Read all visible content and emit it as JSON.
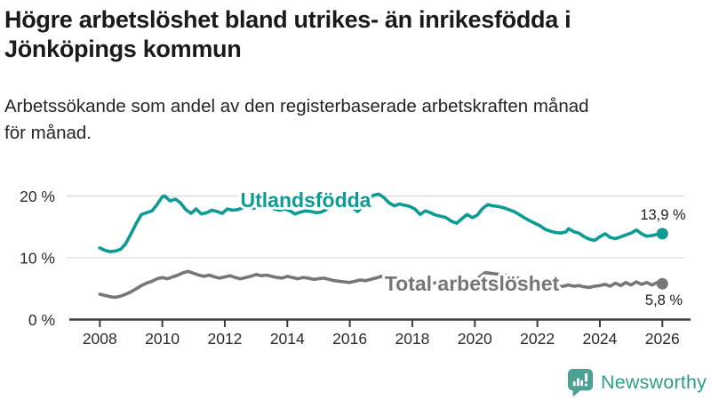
{
  "header": {
    "title_line1": "Högre arbetslöshet bland utrikes- än inrikesfödda i",
    "title_line2": "Jönköpings kommun",
    "subtitle_line1": "Arbetssökande som andel av den registerbaserade arbetskraften månad",
    "subtitle_line2": "för månad."
  },
  "footer": {
    "brand": "Newsworthy",
    "brand_text_color": "#2f9c8e",
    "brand_icon_color": "#4ba294"
  },
  "chart_data": {
    "type": "line",
    "title": "Högre arbetslöshet bland utrikes- än inrikesfödda i Jönköpings kommun",
    "subtitle": "Arbetssökande som andel av den registerbaserade arbetskraften månad för månad.",
    "xlabel": "",
    "ylabel": "",
    "grid": true,
    "legend_position": "inline-labels",
    "xlim": [
      2008,
      2026.6
    ],
    "ylim": [
      0,
      21
    ],
    "x_ticks": [
      2008,
      2010,
      2012,
      2014,
      2016,
      2018,
      2020,
      2022,
      2024,
      2026
    ],
    "x_tick_labels": [
      "2008",
      "2010",
      "2012",
      "2014",
      "2016",
      "2018",
      "2020",
      "2022",
      "2024",
      "2026"
    ],
    "y_ticks": [
      0,
      10,
      20
    ],
    "y_tick_labels": [
      "0 %",
      "10 %",
      "20 %"
    ],
    "grid_color": "#d9d9d9",
    "axis_color": "#3c3c3c",
    "series": [
      {
        "name": "Utlandsfödda",
        "color": "#0d9c94",
        "end_label": "13,9 %",
        "end_value": 13.9,
        "points": [
          [
            2008.0,
            11.6
          ],
          [
            2008.17,
            11.2
          ],
          [
            2008.33,
            11.0
          ],
          [
            2008.5,
            11.1
          ],
          [
            2008.67,
            11.4
          ],
          [
            2008.83,
            12.3
          ],
          [
            2009.0,
            13.9
          ],
          [
            2009.17,
            15.6
          ],
          [
            2009.33,
            17.0
          ],
          [
            2009.5,
            17.3
          ],
          [
            2009.67,
            17.6
          ],
          [
            2009.83,
            18.6
          ],
          [
            2010.0,
            19.9
          ],
          [
            2010.08,
            20.0
          ],
          [
            2010.25,
            19.2
          ],
          [
            2010.42,
            19.5
          ],
          [
            2010.58,
            18.9
          ],
          [
            2010.75,
            17.8
          ],
          [
            2010.92,
            17.2
          ],
          [
            2011.08,
            17.9
          ],
          [
            2011.25,
            17.1
          ],
          [
            2011.42,
            17.3
          ],
          [
            2011.58,
            17.7
          ],
          [
            2011.75,
            17.5
          ],
          [
            2011.92,
            17.2
          ],
          [
            2012.08,
            17.9
          ],
          [
            2012.25,
            17.7
          ],
          [
            2012.42,
            17.8
          ],
          [
            2012.58,
            18.1
          ],
          [
            2012.75,
            18.3
          ],
          [
            2012.92,
            18.0
          ],
          [
            2013.08,
            18.3
          ],
          [
            2013.25,
            18.5
          ],
          [
            2013.42,
            18.2
          ],
          [
            2013.58,
            17.9
          ],
          [
            2013.75,
            17.7
          ],
          [
            2013.92,
            17.9
          ],
          [
            2014.08,
            17.6
          ],
          [
            2014.25,
            17.1
          ],
          [
            2014.42,
            17.4
          ],
          [
            2014.58,
            17.6
          ],
          [
            2014.75,
            17.5
          ],
          [
            2014.92,
            17.3
          ],
          [
            2015.08,
            17.4
          ],
          [
            2015.25,
            17.8
          ],
          [
            2015.42,
            18.6
          ],
          [
            2015.58,
            19.4
          ],
          [
            2015.75,
            19.7
          ],
          [
            2015.92,
            19.2
          ],
          [
            2016.08,
            18.1
          ],
          [
            2016.25,
            17.5
          ],
          [
            2016.42,
            18.3
          ],
          [
            2016.58,
            19.3
          ],
          [
            2016.75,
            20.1
          ],
          [
            2016.92,
            20.3
          ],
          [
            2017.08,
            19.8
          ],
          [
            2017.25,
            18.9
          ],
          [
            2017.42,
            18.4
          ],
          [
            2017.58,
            18.7
          ],
          [
            2017.75,
            18.5
          ],
          [
            2017.92,
            18.3
          ],
          [
            2018.08,
            17.9
          ],
          [
            2018.25,
            17.0
          ],
          [
            2018.42,
            17.6
          ],
          [
            2018.58,
            17.3
          ],
          [
            2018.75,
            16.9
          ],
          [
            2018.92,
            16.7
          ],
          [
            2019.08,
            16.5
          ],
          [
            2019.25,
            15.9
          ],
          [
            2019.42,
            15.6
          ],
          [
            2019.58,
            16.3
          ],
          [
            2019.75,
            17.0
          ],
          [
            2019.92,
            16.5
          ],
          [
            2020.08,
            16.9
          ],
          [
            2020.25,
            18.0
          ],
          [
            2020.42,
            18.6
          ],
          [
            2020.58,
            18.4
          ],
          [
            2020.75,
            18.3
          ],
          [
            2020.92,
            18.1
          ],
          [
            2021.08,
            17.8
          ],
          [
            2021.25,
            17.5
          ],
          [
            2021.42,
            17.0
          ],
          [
            2021.58,
            16.5
          ],
          [
            2021.75,
            16.0
          ],
          [
            2021.92,
            15.6
          ],
          [
            2022.08,
            15.2
          ],
          [
            2022.25,
            14.6
          ],
          [
            2022.42,
            14.3
          ],
          [
            2022.58,
            14.1
          ],
          [
            2022.75,
            14.0
          ],
          [
            2022.92,
            14.2
          ],
          [
            2023.0,
            14.7
          ],
          [
            2023.17,
            14.2
          ],
          [
            2023.33,
            14.0
          ],
          [
            2023.5,
            13.4
          ],
          [
            2023.67,
            13.0
          ],
          [
            2023.83,
            12.8
          ],
          [
            2024.0,
            13.4
          ],
          [
            2024.17,
            13.9
          ],
          [
            2024.33,
            13.3
          ],
          [
            2024.5,
            13.1
          ],
          [
            2024.67,
            13.4
          ],
          [
            2024.83,
            13.7
          ],
          [
            2025.0,
            14.0
          ],
          [
            2025.17,
            14.5
          ],
          [
            2025.33,
            13.9
          ],
          [
            2025.5,
            13.5
          ],
          [
            2025.67,
            13.6
          ],
          [
            2025.83,
            13.8
          ],
          [
            2026.0,
            13.9
          ]
        ]
      },
      {
        "name": "Total arbetslöshet",
        "color": "#77757a",
        "end_label": "5,8 %",
        "end_value": 5.8,
        "points": [
          [
            2008.0,
            4.1
          ],
          [
            2008.17,
            3.9
          ],
          [
            2008.33,
            3.7
          ],
          [
            2008.5,
            3.6
          ],
          [
            2008.67,
            3.8
          ],
          [
            2008.83,
            4.1
          ],
          [
            2009.0,
            4.5
          ],
          [
            2009.17,
            5.0
          ],
          [
            2009.33,
            5.5
          ],
          [
            2009.5,
            5.9
          ],
          [
            2009.67,
            6.2
          ],
          [
            2009.83,
            6.6
          ],
          [
            2010.0,
            6.8
          ],
          [
            2010.17,
            6.6
          ],
          [
            2010.33,
            6.9
          ],
          [
            2010.5,
            7.2
          ],
          [
            2010.67,
            7.6
          ],
          [
            2010.83,
            7.8
          ],
          [
            2011.0,
            7.5
          ],
          [
            2011.17,
            7.2
          ],
          [
            2011.33,
            7.0
          ],
          [
            2011.5,
            7.2
          ],
          [
            2011.67,
            6.9
          ],
          [
            2011.83,
            6.7
          ],
          [
            2012.0,
            6.9
          ],
          [
            2012.17,
            7.1
          ],
          [
            2012.33,
            6.8
          ],
          [
            2012.5,
            6.6
          ],
          [
            2012.67,
            6.8
          ],
          [
            2012.83,
            7.0
          ],
          [
            2013.0,
            7.3
          ],
          [
            2013.17,
            7.1
          ],
          [
            2013.33,
            7.2
          ],
          [
            2013.5,
            7.0
          ],
          [
            2013.67,
            6.8
          ],
          [
            2013.83,
            6.7
          ],
          [
            2014.0,
            7.0
          ],
          [
            2014.17,
            6.8
          ],
          [
            2014.33,
            6.6
          ],
          [
            2014.5,
            6.8
          ],
          [
            2014.67,
            6.7
          ],
          [
            2014.83,
            6.5
          ],
          [
            2015.0,
            6.6
          ],
          [
            2015.17,
            6.7
          ],
          [
            2015.33,
            6.5
          ],
          [
            2015.5,
            6.3
          ],
          [
            2015.67,
            6.2
          ],
          [
            2015.83,
            6.1
          ],
          [
            2016.0,
            6.0
          ],
          [
            2016.17,
            6.2
          ],
          [
            2016.33,
            6.4
          ],
          [
            2016.5,
            6.3
          ],
          [
            2016.67,
            6.5
          ],
          [
            2016.83,
            6.7
          ],
          [
            2017.0,
            7.0
          ],
          [
            2017.17,
            6.8
          ],
          [
            2017.33,
            6.6
          ],
          [
            2017.5,
            6.8
          ],
          [
            2017.67,
            6.6
          ],
          [
            2017.83,
            6.5
          ],
          [
            2018.0,
            6.3
          ],
          [
            2018.17,
            6.1
          ],
          [
            2018.33,
            6.2
          ],
          [
            2018.5,
            6.0
          ],
          [
            2018.67,
            5.9
          ],
          [
            2018.83,
            6.0
          ],
          [
            2019.0,
            5.9
          ],
          [
            2019.17,
            5.8
          ],
          [
            2019.33,
            5.7
          ],
          [
            2019.5,
            5.9
          ],
          [
            2019.67,
            6.1
          ],
          [
            2019.83,
            6.0
          ],
          [
            2020.0,
            6.2
          ],
          [
            2020.17,
            7.0
          ],
          [
            2020.33,
            7.6
          ],
          [
            2020.5,
            7.5
          ],
          [
            2020.67,
            7.4
          ],
          [
            2020.83,
            7.3
          ],
          [
            2021.0,
            7.2
          ],
          [
            2021.17,
            7.0
          ],
          [
            2021.33,
            6.8
          ],
          [
            2021.5,
            6.5
          ],
          [
            2021.67,
            6.2
          ],
          [
            2021.83,
            6.0
          ],
          [
            2022.0,
            5.9
          ],
          [
            2022.17,
            5.7
          ],
          [
            2022.33,
            5.6
          ],
          [
            2022.5,
            5.4
          ],
          [
            2022.67,
            5.3
          ],
          [
            2022.83,
            5.4
          ],
          [
            2023.0,
            5.6
          ],
          [
            2023.17,
            5.4
          ],
          [
            2023.33,
            5.5
          ],
          [
            2023.5,
            5.3
          ],
          [
            2023.67,
            5.2
          ],
          [
            2023.83,
            5.4
          ],
          [
            2024.0,
            5.5
          ],
          [
            2024.17,
            5.7
          ],
          [
            2024.33,
            5.4
          ],
          [
            2024.5,
            5.9
          ],
          [
            2024.67,
            5.5
          ],
          [
            2024.83,
            6.0
          ],
          [
            2025.0,
            5.6
          ],
          [
            2025.17,
            6.1
          ],
          [
            2025.33,
            5.7
          ],
          [
            2025.5,
            6.0
          ],
          [
            2025.67,
            5.6
          ],
          [
            2025.83,
            6.0
          ],
          [
            2026.0,
            5.8
          ]
        ]
      }
    ]
  }
}
